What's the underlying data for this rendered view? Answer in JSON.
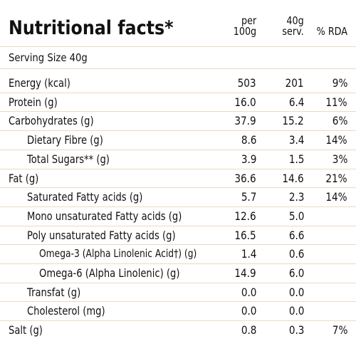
{
  "header": {
    "title": "Nutritional facts*",
    "columns": [
      "per\n100g",
      "40g\nserv.",
      "% RDA"
    ]
  },
  "serving_size": "Serving Size 40g",
  "table": {
    "rows": [
      [
        "Energy (kcal)",
        "503",
        "201",
        "9%"
      ],
      [
        "Protein (g)",
        "16.0",
        "6.4",
        "11%"
      ],
      [
        "Carbohydrates (g)",
        "37.9",
        "15.2",
        "6%"
      ],
      [
        "Dietary Fibre (g)",
        "8.6",
        "3.4",
        "14%"
      ],
      [
        "Total Sugars** (g)",
        "3.9",
        "1.5",
        "3%"
      ],
      [
        "Fat (g)",
        "36.6",
        "14.6",
        "21%"
      ],
      [
        "Saturated Fatty acids (g)",
        "5.7",
        "2.3",
        "14%"
      ],
      [
        "Mono unsaturated Fatty acids (g)",
        "12.6",
        "5.0"
      ],
      [
        "Poly unsaturated Fatty acids (g)",
        "16.5",
        "6.6"
      ],
      [
        "Omega-3 (Alpha Linolenic Acid†) (g)",
        "1.4",
        "0.6"
      ],
      [
        "Omega-6 (Alpha Linolenic) (g)",
        "14.9",
        "6.0"
      ],
      [
        "Transfat (g)",
        "0.0",
        "0.0"
      ],
      [
        "Cholesterol (mg)",
        "0.0",
        "0.0"
      ],
      [
        "Salt (g)",
        "0.8",
        "0.3",
        "7%"
      ]
    ]
  }
}
